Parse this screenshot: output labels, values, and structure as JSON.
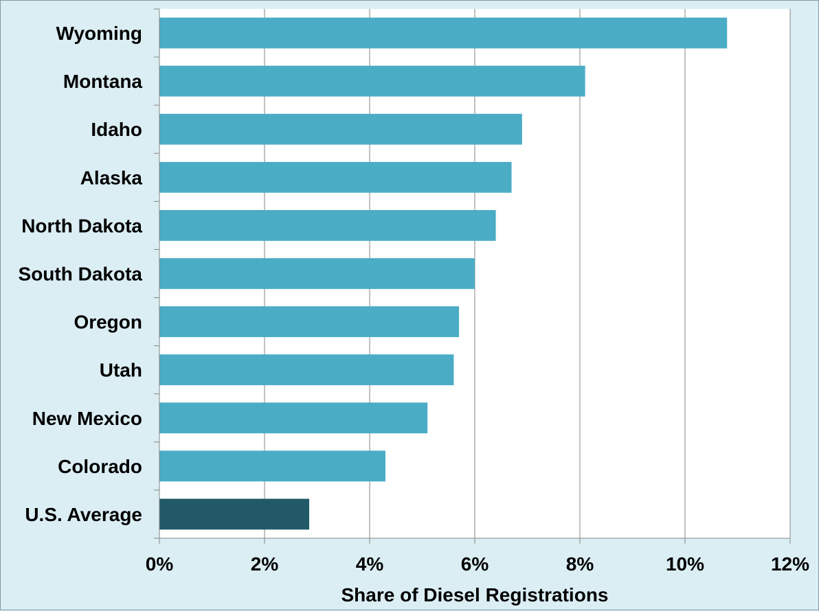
{
  "chart_data": {
    "type": "bar",
    "orientation": "horizontal",
    "title": "",
    "xlabel": "Share of Diesel Registrations",
    "ylabel": "",
    "xlim": [
      0,
      12
    ],
    "x_ticks": [
      0,
      2,
      4,
      6,
      8,
      10,
      12
    ],
    "tick_suffix": "%",
    "grid": true,
    "categories": [
      "Wyoming",
      "Montana",
      "Idaho",
      "Alaska",
      "North Dakota",
      "South Dakota",
      "Oregon",
      "Utah",
      "New Mexico",
      "Colorado",
      "U.S. Average"
    ],
    "values": [
      10.8,
      8.1,
      6.9,
      6.7,
      6.4,
      6.0,
      5.7,
      5.6,
      5.1,
      4.3,
      2.85
    ],
    "colors": {
      "bar": "#4bacc6",
      "highlight": "#215968",
      "highlight_category": "U.S. Average",
      "plot_background": "#ffffff",
      "chart_background": "#dbeef4",
      "gridline": "#868686"
    }
  }
}
